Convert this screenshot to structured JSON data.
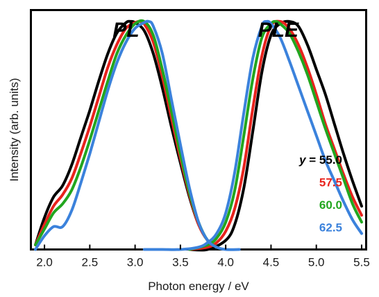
{
  "chart_data": {
    "type": "line",
    "xlabel": "Photon energy / eV",
    "ylabel": "Intensity (arb. units)",
    "xlim": [
      1.85,
      5.55
    ],
    "ylim": [
      0,
      1.05
    ],
    "xticks": [
      2.0,
      2.5,
      3.0,
      3.5,
      4.0,
      4.5,
      5.0,
      5.5
    ],
    "xtick_labels": [
      "2.0",
      "2.5",
      "3.0",
      "3.5",
      "4.0",
      "4.5",
      "5.0",
      "5.5"
    ],
    "grid": false,
    "panel_labels": [
      {
        "text": "PL",
        "x": 2.9
      },
      {
        "text": "PLE",
        "x": 4.58
      }
    ],
    "legend": {
      "placement": "right",
      "variable": "y",
      "equals": " = ",
      "entries": [
        "55.0",
        "57.5",
        "60.0",
        "62.5"
      ]
    },
    "series": [
      {
        "name": "55.0",
        "color": "#000000",
        "pl": {
          "x": [
            1.9,
            2.0,
            2.1,
            2.2,
            2.3,
            2.4,
            2.5,
            2.6,
            2.7,
            2.8,
            2.9,
            2.95,
            3.0,
            3.1,
            3.2,
            3.3,
            3.4,
            3.5,
            3.6,
            3.7,
            3.8,
            3.9
          ],
          "y": [
            0.02,
            0.14,
            0.23,
            0.28,
            0.37,
            0.49,
            0.61,
            0.74,
            0.86,
            0.95,
            0.995,
            1.0,
            0.995,
            0.96,
            0.86,
            0.71,
            0.54,
            0.38,
            0.23,
            0.11,
            0.04,
            0.01
          ]
        },
        "ple": {
          "x": [
            3.6,
            3.8,
            4.0,
            4.1,
            4.2,
            4.3,
            4.4,
            4.5,
            4.6,
            4.7,
            4.8,
            4.9,
            5.0,
            5.1,
            5.2,
            5.3,
            5.4,
            5.5
          ],
          "y": [
            0.0,
            0.0,
            0.04,
            0.11,
            0.27,
            0.52,
            0.78,
            0.94,
            0.99,
            1.0,
            0.98,
            0.9,
            0.79,
            0.68,
            0.55,
            0.42,
            0.3,
            0.19
          ]
        }
      },
      {
        "name": "57.5",
        "color": "#e8231d",
        "pl": {
          "x": [
            1.9,
            2.0,
            2.1,
            2.2,
            2.3,
            2.4,
            2.5,
            2.6,
            2.7,
            2.8,
            2.9,
            3.0,
            3.05,
            3.1,
            3.2,
            3.3,
            3.4,
            3.5,
            3.6,
            3.7,
            3.8,
            3.9
          ],
          "y": [
            0.02,
            0.11,
            0.19,
            0.24,
            0.31,
            0.42,
            0.54,
            0.67,
            0.8,
            0.9,
            0.97,
            0.995,
            1.0,
            0.99,
            0.91,
            0.76,
            0.58,
            0.4,
            0.24,
            0.11,
            0.04,
            0.01
          ]
        },
        "ple": {
          "x": [
            3.6,
            3.8,
            3.9,
            4.0,
            4.1,
            4.2,
            4.3,
            4.4,
            4.5,
            4.6,
            4.7,
            4.8,
            4.9,
            5.0,
            5.1,
            5.2,
            5.3,
            5.4,
            5.5
          ],
          "y": [
            0.0,
            0.01,
            0.03,
            0.08,
            0.18,
            0.36,
            0.62,
            0.85,
            0.98,
            1.0,
            0.97,
            0.9,
            0.8,
            0.68,
            0.55,
            0.44,
            0.33,
            0.23,
            0.15
          ]
        }
      },
      {
        "name": "60.0",
        "color": "#22a61f",
        "pl": {
          "x": [
            1.9,
            2.0,
            2.1,
            2.2,
            2.3,
            2.4,
            2.5,
            2.6,
            2.7,
            2.8,
            2.9,
            3.0,
            3.1,
            3.2,
            3.3,
            3.4,
            3.5,
            3.6,
            3.7,
            3.8,
            3.9
          ],
          "y": [
            0.02,
            0.09,
            0.16,
            0.2,
            0.26,
            0.36,
            0.48,
            0.61,
            0.74,
            0.86,
            0.94,
            0.99,
            1.0,
            0.94,
            0.79,
            0.61,
            0.42,
            0.25,
            0.12,
            0.04,
            0.01
          ]
        },
        "ple": {
          "x": [
            3.6,
            3.8,
            3.9,
            4.0,
            4.1,
            4.2,
            4.3,
            4.4,
            4.5,
            4.55,
            4.6,
            4.7,
            4.8,
            4.9,
            5.0,
            5.1,
            5.2,
            5.3,
            5.4,
            5.5
          ],
          "y": [
            0.0,
            0.02,
            0.05,
            0.12,
            0.26,
            0.5,
            0.75,
            0.93,
            0.99,
            1.0,
            0.99,
            0.95,
            0.87,
            0.77,
            0.65,
            0.53,
            0.42,
            0.31,
            0.2,
            0.12
          ]
        }
      },
      {
        "name": "62.5",
        "color": "#3b82dc",
        "pl": {
          "x": [
            1.9,
            2.0,
            2.1,
            2.2,
            2.3,
            2.4,
            2.5,
            2.6,
            2.7,
            2.8,
            2.9,
            3.0,
            3.1,
            3.15,
            3.2,
            3.3,
            3.4,
            3.5,
            3.6,
            3.7,
            3.8,
            3.9,
            4.0,
            4.15
          ],
          "y": [
            0.0,
            0.06,
            0.1,
            0.1,
            0.17,
            0.29,
            0.42,
            0.56,
            0.7,
            0.82,
            0.91,
            0.97,
            0.995,
            1.0,
            0.98,
            0.86,
            0.66,
            0.46,
            0.27,
            0.12,
            0.04,
            0.01,
            0.0,
            0.0
          ]
        },
        "ple": {
          "x": [
            3.1,
            3.3,
            3.5,
            3.7,
            3.8,
            3.9,
            4.0,
            4.1,
            4.2,
            4.3,
            4.4,
            4.45,
            4.5,
            4.6,
            4.7,
            4.8,
            4.9,
            5.0,
            5.1,
            5.2,
            5.3,
            5.4,
            5.5
          ],
          "y": [
            0.0,
            0.0,
            0.0,
            0.01,
            0.03,
            0.07,
            0.16,
            0.34,
            0.6,
            0.84,
            0.98,
            1.0,
            0.99,
            0.93,
            0.83,
            0.72,
            0.61,
            0.5,
            0.39,
            0.3,
            0.21,
            0.13,
            0.07
          ]
        }
      }
    ]
  }
}
